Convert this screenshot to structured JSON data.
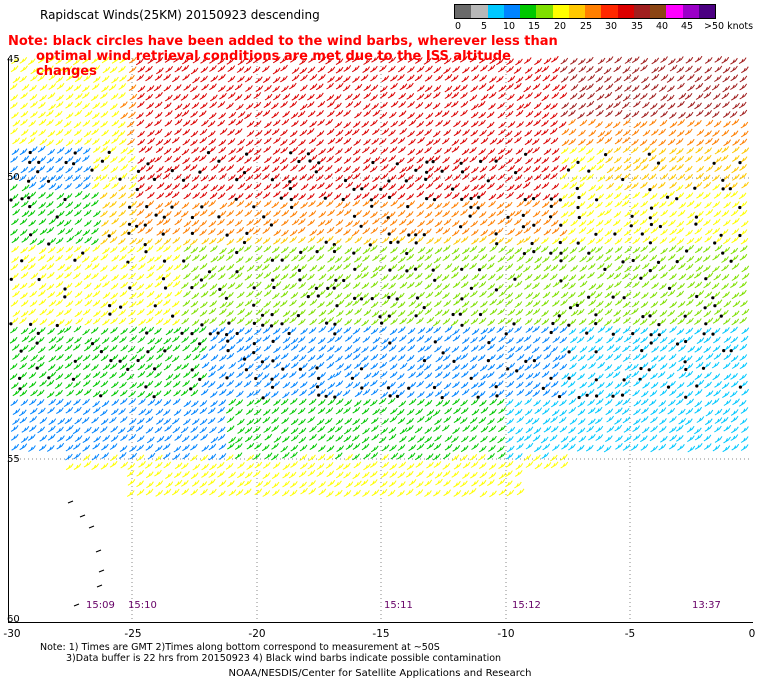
{
  "title": "Rapidscat Winds(25KM) 20150923 descending",
  "note": {
    "line1": "Note: black circles have been added to the wind barbs, wherever less than",
    "line2": "optimal wind retrieval conditions are met due to the ISS altitude changes"
  },
  "legend": {
    "labels": [
      "0",
      "5",
      "10",
      "15",
      "20",
      "25",
      "30",
      "35",
      "40",
      "45",
      ">50 knots"
    ],
    "colors": [
      "#6a6a6a",
      "#b8b8b8",
      "#00c8ff",
      "#0084ff",
      "#00c800",
      "#7fe000",
      "#ffff00",
      "#ffc800",
      "#ff7f00",
      "#ff2800",
      "#dc0000",
      "#a01e1e",
      "#8b4513",
      "#ff00ff",
      "#9b00c8",
      "#4b0082"
    ]
  },
  "axes": {
    "lat_labels": [
      "45",
      "50",
      "55",
      "60"
    ],
    "lon_labels": [
      "-30",
      "-25",
      "-20",
      "-15",
      "-10",
      "-5",
      "0"
    ]
  },
  "pass_times": [
    "15:09",
    "15:10",
    "15:11",
    "15:12",
    "13:37"
  ],
  "footnote": {
    "line1": "Note: 1) Times are GMT 2)Times along bottom correspond to measurement at ~50S",
    "line2": "3)Data buffer is 22 hrs from 20150923 4) Black wind barbs indicate possible contamination"
  },
  "credit": "NOAA/NESDIS/Center for Satellite Applications and Research"
}
